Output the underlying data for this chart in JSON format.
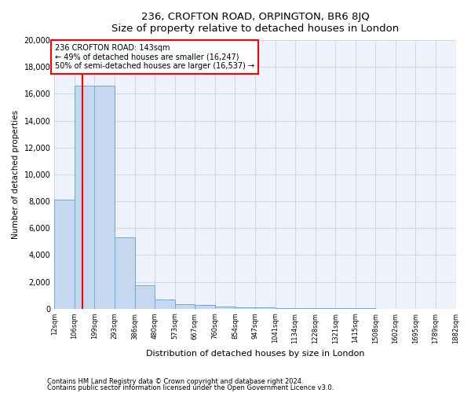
{
  "title1": "236, CROFTON ROAD, ORPINGTON, BR6 8JQ",
  "title2": "Size of property relative to detached houses in London",
  "xlabel": "Distribution of detached houses by size in London",
  "ylabel": "Number of detached properties",
  "bar_edges": [
    12,
    106,
    199,
    293,
    386,
    480,
    573,
    667,
    760,
    854,
    947,
    1041,
    1134,
    1228,
    1321,
    1415,
    1508,
    1602,
    1695,
    1789,
    1882
  ],
  "bar_heights": [
    8100,
    16600,
    16600,
    5300,
    1750,
    700,
    350,
    250,
    150,
    100,
    80,
    60,
    40,
    30,
    20,
    15,
    10,
    8,
    5,
    3
  ],
  "bar_color": "#c5d8f0",
  "bar_edgecolor": "#6aaad4",
  "vline_x": 143,
  "vline_color": "red",
  "annotation_text": "236 CROFTON ROAD: 143sqm\n← 49% of detached houses are smaller (16,247)\n50% of semi-detached houses are larger (16,537) →",
  "annotation_box_color": "red",
  "ylim": [
    0,
    20000
  ],
  "yticks": [
    0,
    2000,
    4000,
    6000,
    8000,
    10000,
    12000,
    14000,
    16000,
    18000,
    20000
  ],
  "tick_labels": [
    "12sqm",
    "106sqm",
    "199sqm",
    "293sqm",
    "386sqm",
    "480sqm",
    "573sqm",
    "667sqm",
    "760sqm",
    "854sqm",
    "947sqm",
    "1041sqm",
    "1134sqm",
    "1228sqm",
    "1321sqm",
    "1415sqm",
    "1508sqm",
    "1602sqm",
    "1695sqm",
    "1789sqm",
    "1882sqm"
  ],
  "footer1": "Contains HM Land Registry data © Crown copyright and database right 2024.",
  "footer2": "Contains public sector information licensed under the Open Government Licence v3.0.",
  "bg_color": "#eef2fa",
  "grid_color": "#d0d8e8"
}
